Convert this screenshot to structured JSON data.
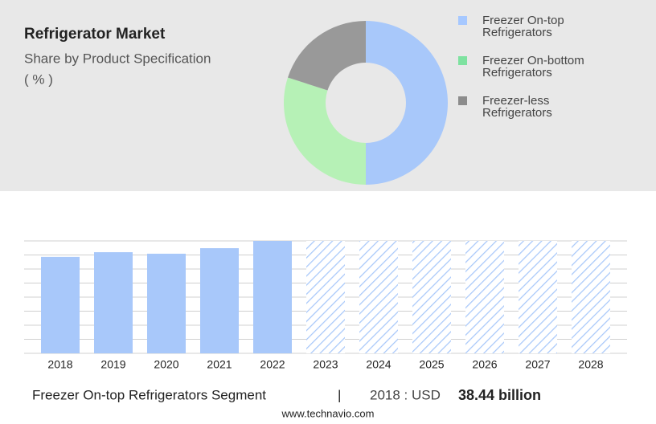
{
  "chart_data": [
    {
      "type": "donut",
      "title": "Refrigerator Market",
      "subtitle": "Share by Product Specification",
      "unit": "( % )",
      "categories": [
        "Freezer On-top Refrigerators",
        "Freezer On-bottom Refrigerators",
        "Freezer-less Refrigerators"
      ],
      "values": [
        50,
        30,
        20
      ],
      "colors": [
        "#a8c8fa",
        "#b6f1b6",
        "#999999"
      ],
      "legend_colors": [
        "#a6c8ff",
        "#7ee2a0",
        "#8c8c8c"
      ]
    },
    {
      "type": "bar",
      "categories": [
        "2018",
        "2019",
        "2020",
        "2021",
        "2022",
        "2023",
        "2024",
        "2025",
        "2026",
        "2027",
        "2028"
      ],
      "values": [
        38.44,
        40.3,
        39.7,
        41.9,
        44.8,
        null,
        null,
        null,
        null,
        null,
        null
      ],
      "color": "#a8c8fa",
      "ylim": [
        0,
        44.8
      ],
      "grid": true,
      "segment": "Freezer On-top Refrigerators Segment",
      "separator": "|",
      "highlight_label": "2018 : USD",
      "highlight_value": "38.44 billion"
    }
  ],
  "footer": "www.technavio.com"
}
